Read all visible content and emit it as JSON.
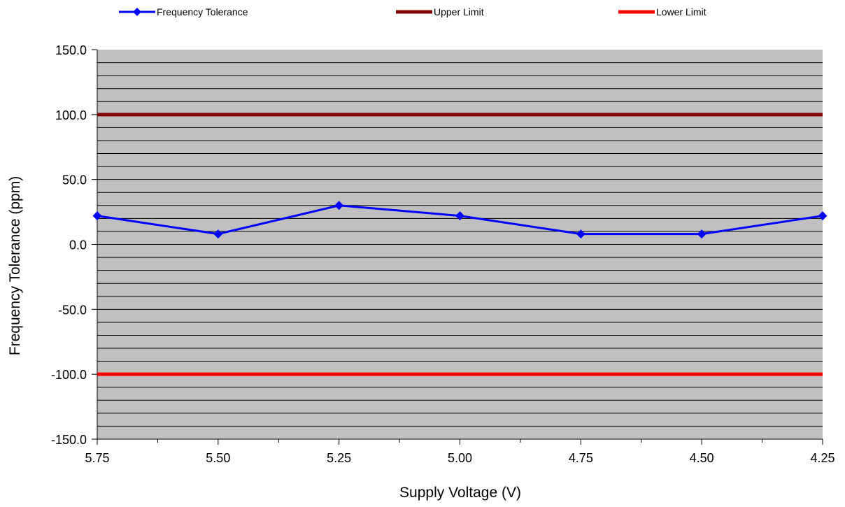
{
  "chart_data": {
    "type": "line",
    "title": "",
    "xlabel": "Supply Voltage (V)",
    "ylabel": "Frequency Tolerance (ppm)",
    "categories": [
      "5.75",
      "5.50",
      "5.25",
      "5.00",
      "4.75",
      "4.50",
      "4.25"
    ],
    "y_tick_labels": [
      "150.0",
      "100.0",
      "50.0",
      "0.0",
      "-50.0",
      "-100.0",
      "-150.0"
    ],
    "ylim": [
      -150,
      150
    ],
    "y_major_step": 50,
    "y_minor_step": 10,
    "grid": true,
    "plot_background": "#c0c0c0",
    "legend_position": "top",
    "series": [
      {
        "name": "Frequency Tolerance",
        "values": [
          22,
          8,
          30,
          22,
          8,
          8,
          22
        ],
        "color": "#0000ff",
        "marker": "diamond"
      },
      {
        "name": "Upper Limit",
        "values": [
          100,
          100,
          100,
          100,
          100,
          100,
          100
        ],
        "color": "#800000",
        "marker": "none"
      },
      {
        "name": "Lower Limit",
        "values": [
          -100,
          -100,
          -100,
          -100,
          -100,
          -100,
          -100
        ],
        "color": "#ff0000",
        "marker": "none"
      }
    ]
  }
}
